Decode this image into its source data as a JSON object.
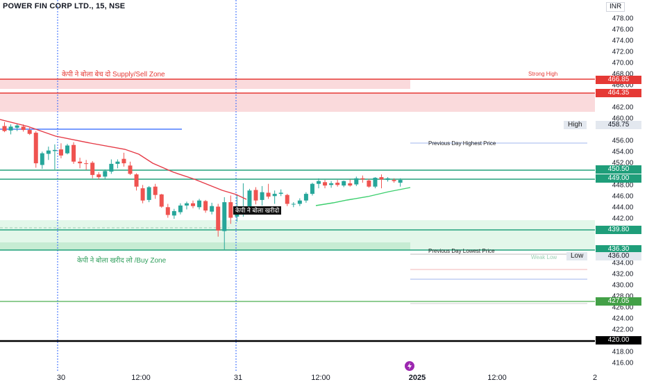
{
  "symbol_title": "POWER FIN CORP LTD., 15, NSE",
  "currency": "INR",
  "annotations": {
    "supply_zone": "केपी ने बोला बेच दो  Supply/Sell Zone",
    "buy_zone": "केपी ने बोला खरीद लो /Buy Zone",
    "buy_signal": "केपी ने बोला खरीदो",
    "strong_high": "Strong High",
    "prev_day_high": "Previous Day Highest Price",
    "prev_day_low": "Previous Day Lowest Price",
    "weak_low": "Weak Low",
    "high_label": "High",
    "low_label": "Low"
  },
  "colors": {
    "up": "#26a69a",
    "down": "#ef5350",
    "supply_zone": "#fadadc",
    "buy_zone": "#e3f7ea",
    "red_line": "#e53935",
    "teal_line": "#22a07c",
    "green_line": "#4caf50",
    "ema": "#e53945",
    "ema2": "#3ccf6e",
    "blue_line": "#2962ff",
    "vline": "#2962ff"
  },
  "price_labels": [
    {
      "value": "466.85",
      "color": "#e53935"
    },
    {
      "value": "464.35",
      "color": "#e53935"
    },
    {
      "value": "458.75",
      "color": "#e3e8ef",
      "text": "#131722"
    },
    {
      "value": "450.50",
      "color": "#1f9e7a"
    },
    {
      "value": "449.00",
      "color": "#1f9e7a"
    },
    {
      "value": "439.80",
      "color": "#1f9e7a"
    },
    {
      "value": "436.30",
      "color": "#1f9e7a"
    },
    {
      "value": "436.00",
      "color": "#e3e8ef",
      "text": "#131722"
    },
    {
      "value": "427.05",
      "color": "#43a047"
    },
    {
      "value": "420.00",
      "color": "#000000"
    }
  ],
  "y_ticks": [
    "478.00",
    "476.00",
    "474.00",
    "472.00",
    "470.00",
    "468.00",
    "466.00",
    "462.00",
    "460.00",
    "456.00",
    "454.00",
    "452.00",
    "448.00",
    "446.00",
    "444.00",
    "442.00",
    "434.00",
    "432.00",
    "430.00",
    "428.00",
    "426.00",
    "424.00",
    "422.00",
    "418.00",
    "416.00"
  ],
  "x_ticks": [
    "30",
    "12:00",
    "31",
    "12:00",
    "2025",
    "12:00",
    "2"
  ],
  "chart_data": {
    "type": "candlestick",
    "title": "POWER FIN CORP LTD., 15, NSE",
    "ylim": [
      415,
      480
    ],
    "levels": [
      466.85,
      464.35,
      458.75,
      450.5,
      449.0,
      439.8,
      436.3,
      436.0,
      427.05,
      420.0
    ],
    "candles": [
      {
        "o": 458.5,
        "h": 459.2,
        "l": 457.4,
        "c": 457.6
      },
      {
        "o": 457.7,
        "h": 458.8,
        "l": 457.0,
        "c": 458.4
      },
      {
        "o": 458.2,
        "h": 458.9,
        "l": 457.6,
        "c": 458.6
      },
      {
        "o": 458.4,
        "h": 458.8,
        "l": 457.5,
        "c": 457.8
      },
      {
        "o": 457.8,
        "h": 458.2,
        "l": 456.9,
        "c": 457.1
      },
      {
        "o": 457.3,
        "h": 457.6,
        "l": 451.0,
        "c": 451.8
      },
      {
        "o": 451.5,
        "h": 453.9,
        "l": 450.8,
        "c": 453.6
      },
      {
        "o": 453.5,
        "h": 454.8,
        "l": 452.4,
        "c": 454.1
      },
      {
        "o": 454.0,
        "h": 455.2,
        "l": 450.7,
        "c": 454.2
      },
      {
        "o": 454.3,
        "h": 455.4,
        "l": 452.7,
        "c": 453.2
      },
      {
        "o": 453.6,
        "h": 455.3,
        "l": 453.4,
        "c": 455.0
      },
      {
        "o": 455.1,
        "h": 455.6,
        "l": 451.7,
        "c": 452.1
      },
      {
        "o": 452.1,
        "h": 452.8,
        "l": 450.9,
        "c": 451.8
      },
      {
        "o": 451.8,
        "h": 452.4,
        "l": 450.6,
        "c": 451.7
      },
      {
        "o": 451.9,
        "h": 452.2,
        "l": 449.1,
        "c": 449.7
      },
      {
        "o": 449.8,
        "h": 450.2,
        "l": 448.9,
        "c": 449.3
      },
      {
        "o": 449.4,
        "h": 450.7,
        "l": 449.0,
        "c": 450.4
      },
      {
        "o": 450.3,
        "h": 452.5,
        "l": 449.9,
        "c": 451.7
      },
      {
        "o": 451.7,
        "h": 452.5,
        "l": 450.9,
        "c": 452.1
      },
      {
        "o": 452.6,
        "h": 453.7,
        "l": 451.2,
        "c": 451.8
      },
      {
        "o": 451.4,
        "h": 452.1,
        "l": 449.7,
        "c": 449.9
      },
      {
        "o": 449.8,
        "h": 450.0,
        "l": 446.9,
        "c": 447.6
      },
      {
        "o": 447.3,
        "h": 447.9,
        "l": 444.6,
        "c": 445.1
      },
      {
        "o": 445.2,
        "h": 447.7,
        "l": 444.8,
        "c": 447.5
      },
      {
        "o": 447.6,
        "h": 448.1,
        "l": 445.4,
        "c": 446.1
      },
      {
        "o": 446.2,
        "h": 446.3,
        "l": 443.8,
        "c": 444.0
      },
      {
        "o": 443.9,
        "h": 444.5,
        "l": 442.0,
        "c": 442.5
      },
      {
        "o": 442.4,
        "h": 443.6,
        "l": 441.8,
        "c": 443.2
      },
      {
        "o": 443.0,
        "h": 444.6,
        "l": 442.6,
        "c": 444.2
      },
      {
        "o": 444.2,
        "h": 444.9,
        "l": 443.5,
        "c": 444.6
      },
      {
        "o": 444.6,
        "h": 445.1,
        "l": 443.7,
        "c": 444.1
      },
      {
        "o": 443.9,
        "h": 445.4,
        "l": 443.5,
        "c": 445.1
      },
      {
        "o": 445.0,
        "h": 445.2,
        "l": 442.9,
        "c": 443.3
      },
      {
        "o": 443.1,
        "h": 444.7,
        "l": 442.6,
        "c": 444.1
      },
      {
        "o": 444.0,
        "h": 444.5,
        "l": 438.6,
        "c": 439.7
      },
      {
        "o": 439.6,
        "h": 445.7,
        "l": 436.3,
        "c": 444.8
      },
      {
        "o": 444.8,
        "h": 446.0,
        "l": 440.9,
        "c": 442.0
      },
      {
        "o": 442.2,
        "h": 446.1,
        "l": 441.3,
        "c": 442.9
      },
      {
        "o": 442.9,
        "h": 448.2,
        "l": 442.2,
        "c": 443.5
      },
      {
        "o": 443.4,
        "h": 447.2,
        "l": 442.7,
        "c": 446.9
      },
      {
        "o": 447.0,
        "h": 447.5,
        "l": 444.4,
        "c": 445.1
      },
      {
        "o": 445.2,
        "h": 447.7,
        "l": 444.2,
        "c": 446.6
      },
      {
        "o": 446.5,
        "h": 448.1,
        "l": 445.4,
        "c": 445.8
      },
      {
        "o": 445.9,
        "h": 446.9,
        "l": 444.5,
        "c": 446.3
      },
      {
        "o": 446.3,
        "h": 447.1,
        "l": 445.9,
        "c": 446.5
      },
      {
        "o": 446.1,
        "h": 446.3,
        "l": 444.1,
        "c": 444.5
      },
      {
        "o": 444.4,
        "h": 444.8,
        "l": 443.9,
        "c": 444.5
      },
      {
        "o": 444.5,
        "h": 445.5,
        "l": 444.1,
        "c": 445.1
      },
      {
        "o": 445.1,
        "h": 446.6,
        "l": 444.7,
        "c": 446.3
      },
      {
        "o": 446.3,
        "h": 448.3,
        "l": 446.0,
        "c": 448.1
      },
      {
        "o": 448.1,
        "h": 449.1,
        "l": 447.3,
        "c": 448.6
      },
      {
        "o": 448.4,
        "h": 448.8,
        "l": 447.3,
        "c": 447.8
      },
      {
        "o": 447.9,
        "h": 448.6,
        "l": 447.4,
        "c": 448.2
      },
      {
        "o": 448.3,
        "h": 448.8,
        "l": 447.6,
        "c": 447.9
      },
      {
        "o": 447.8,
        "h": 448.7,
        "l": 447.5,
        "c": 448.6
      },
      {
        "o": 448.2,
        "h": 448.9,
        "l": 447.6,
        "c": 447.8
      },
      {
        "o": 448.0,
        "h": 449.4,
        "l": 447.7,
        "c": 449.1
      },
      {
        "o": 449.1,
        "h": 449.6,
        "l": 448.3,
        "c": 448.9
      },
      {
        "o": 448.7,
        "h": 449.0,
        "l": 447.4,
        "c": 447.6
      },
      {
        "o": 447.6,
        "h": 449.3,
        "l": 447.3,
        "c": 449.2
      },
      {
        "o": 449.3,
        "h": 449.8,
        "l": 447.3,
        "c": 448.9
      },
      {
        "o": 448.8,
        "h": 449.3,
        "l": 448.5,
        "c": 449.1
      },
      {
        "o": 448.8,
        "h": 449.1,
        "l": 448.3,
        "c": 448.6
      },
      {
        "o": 448.3,
        "h": 449.1,
        "l": 447.6,
        "c": 448.8
      }
    ]
  }
}
